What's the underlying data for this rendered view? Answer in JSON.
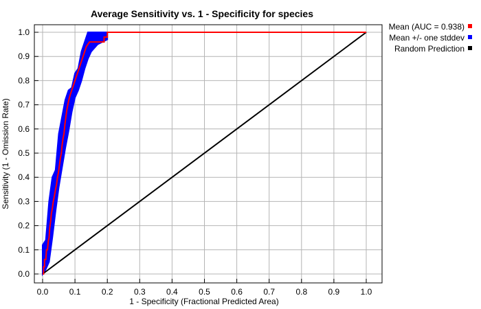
{
  "chart_data": {
    "type": "line",
    "title": "Average Sensitivity vs. 1 - Specificity for species",
    "xlabel": "1 - Specificity (Fractional Predicted Area)",
    "ylabel": "Sensitivity (1 - Omission Rate)",
    "xlim": [
      0,
      1
    ],
    "ylim": [
      0,
      1
    ],
    "x_ticks": [
      "0.0",
      "0.1",
      "0.2",
      "0.3",
      "0.4",
      "0.5",
      "0.6",
      "0.7",
      "0.8",
      "0.9",
      "1.0"
    ],
    "y_ticks": [
      "0.0",
      "0.1",
      "0.2",
      "0.3",
      "0.4",
      "0.5",
      "0.6",
      "0.7",
      "0.8",
      "0.9",
      "1.0"
    ],
    "grid": true,
    "legend_position": "right-top",
    "series": [
      {
        "name": "Mean (AUC = 0.938)",
        "color": "#ff0000",
        "points": [
          [
            0,
            0
          ],
          [
            0.003,
            0
          ],
          [
            0.003,
            0.03
          ],
          [
            0.006,
            0.03
          ],
          [
            0.006,
            0.06
          ],
          [
            0.01,
            0.06
          ],
          [
            0.012,
            0.1
          ],
          [
            0.015,
            0.1
          ],
          [
            0.018,
            0.14
          ],
          [
            0.02,
            0.15
          ],
          [
            0.022,
            0.19
          ],
          [
            0.025,
            0.22
          ],
          [
            0.027,
            0.25
          ],
          [
            0.03,
            0.27
          ],
          [
            0.033,
            0.3
          ],
          [
            0.036,
            0.32
          ],
          [
            0.04,
            0.35
          ],
          [
            0.043,
            0.37
          ],
          [
            0.046,
            0.4
          ],
          [
            0.049,
            0.42
          ],
          [
            0.052,
            0.45
          ],
          [
            0.055,
            0.48
          ],
          [
            0.058,
            0.5
          ],
          [
            0.06,
            0.53
          ],
          [
            0.063,
            0.56
          ],
          [
            0.066,
            0.58
          ],
          [
            0.069,
            0.62
          ],
          [
            0.072,
            0.65
          ],
          [
            0.075,
            0.68
          ],
          [
            0.078,
            0.7
          ],
          [
            0.081,
            0.72
          ],
          [
            0.085,
            0.74
          ],
          [
            0.09,
            0.76
          ],
          [
            0.095,
            0.78
          ],
          [
            0.1,
            0.8
          ],
          [
            0.105,
            0.82
          ],
          [
            0.11,
            0.84
          ],
          [
            0.115,
            0.86
          ],
          [
            0.12,
            0.88
          ],
          [
            0.125,
            0.9
          ],
          [
            0.13,
            0.92
          ],
          [
            0.135,
            0.94
          ],
          [
            0.14,
            0.95
          ],
          [
            0.145,
            0.96
          ],
          [
            0.19,
            0.96
          ],
          [
            0.19,
            0.98
          ],
          [
            0.2,
            0.98
          ],
          [
            0.2,
            1.0
          ],
          [
            1.0,
            1.0
          ]
        ]
      },
      {
        "name": "Mean +/- one stddev",
        "color": "#0000ff",
        "upper": [
          [
            0,
            0.12
          ],
          [
            0.01,
            0.14
          ],
          [
            0.02,
            0.3
          ],
          [
            0.03,
            0.4
          ],
          [
            0.04,
            0.43
          ],
          [
            0.05,
            0.58
          ],
          [
            0.06,
            0.65
          ],
          [
            0.07,
            0.72
          ],
          [
            0.08,
            0.76
          ],
          [
            0.09,
            0.77
          ],
          [
            0.1,
            0.83
          ],
          [
            0.11,
            0.85
          ],
          [
            0.12,
            0.92
          ],
          [
            0.13,
            0.96
          ],
          [
            0.14,
            1.0
          ],
          [
            1.0,
            1.0
          ]
        ],
        "lower": [
          [
            0,
            0
          ],
          [
            0.01,
            0.02
          ],
          [
            0.02,
            0.05
          ],
          [
            0.03,
            0.15
          ],
          [
            0.04,
            0.26
          ],
          [
            0.05,
            0.36
          ],
          [
            0.06,
            0.44
          ],
          [
            0.07,
            0.52
          ],
          [
            0.08,
            0.59
          ],
          [
            0.09,
            0.67
          ],
          [
            0.1,
            0.73
          ],
          [
            0.11,
            0.76
          ],
          [
            0.12,
            0.8
          ],
          [
            0.13,
            0.85
          ],
          [
            0.14,
            0.89
          ],
          [
            0.15,
            0.92
          ],
          [
            0.17,
            0.95
          ],
          [
            0.2,
            0.97
          ],
          [
            0.2,
            1.0
          ],
          [
            1.0,
            1.0
          ]
        ]
      },
      {
        "name": "Random Prediction",
        "color": "#000000",
        "points": [
          [
            0,
            0
          ],
          [
            1,
            1
          ]
        ]
      }
    ]
  }
}
